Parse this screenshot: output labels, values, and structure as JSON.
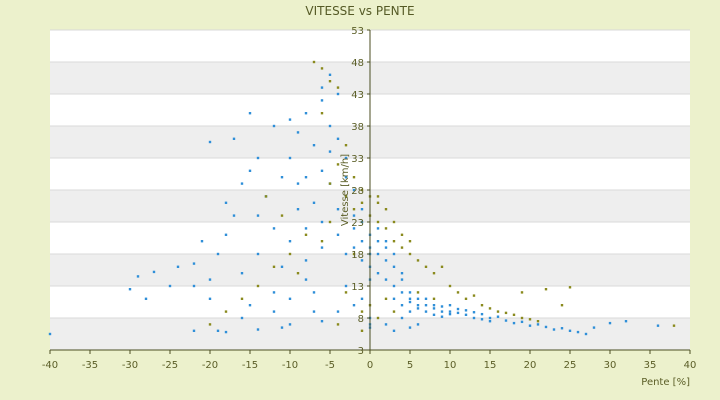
{
  "chart_data": {
    "type": "scatter",
    "title": "VITESSE vs PENTE",
    "xlabel": "Pente [%]",
    "ylabel": "Vitesse [km/h]",
    "xlim": [
      -40,
      40
    ],
    "ylim": [
      3,
      53
    ],
    "x_ticks": [
      "-40",
      "-35",
      "-30",
      "-25",
      "-20",
      "-15",
      "-10",
      "-5",
      "0",
      "5",
      "10",
      "15",
      "20",
      "25",
      "30",
      "35",
      "40"
    ],
    "y_ticks": [
      "3",
      "8",
      "13",
      "18",
      "23",
      "28",
      "33",
      "38",
      "43",
      "48",
      "53"
    ],
    "grid": true,
    "legend": "none",
    "colors": {
      "background": "#ECF1CC",
      "band_light": "#FFFFFF",
      "band_dark": "#EEEEEE",
      "series_blue": "#2F8FD8",
      "series_olive": "#8A8A1E",
      "axis": "#4B4E22",
      "text": "#5B5E27"
    },
    "series": [
      {
        "color_key": "series_blue",
        "points": [
          [
            -40,
            5.5
          ],
          [
            -30,
            12.5
          ],
          [
            -28,
            11
          ],
          [
            -29,
            14.5
          ],
          [
            -27,
            15.2
          ],
          [
            -25,
            13
          ],
          [
            -24,
            16
          ],
          [
            -22,
            13
          ],
          [
            -22,
            16.5
          ],
          [
            -21,
            20
          ],
          [
            -20,
            14
          ],
          [
            -20,
            35.5
          ],
          [
            -19,
            18
          ],
          [
            -18,
            21
          ],
          [
            -18,
            26
          ],
          [
            -17,
            36
          ],
          [
            -17,
            24
          ],
          [
            -16,
            15
          ],
          [
            -16,
            29
          ],
          [
            -15,
            31
          ],
          [
            -15,
            40
          ],
          [
            -14,
            24
          ],
          [
            -14,
            18
          ],
          [
            -14,
            33
          ],
          [
            -13,
            27
          ],
          [
            -12,
            12
          ],
          [
            -12,
            22
          ],
          [
            -12,
            38
          ],
          [
            -11,
            30
          ],
          [
            -11,
            16
          ],
          [
            -10,
            20
          ],
          [
            -10,
            39
          ],
          [
            -10,
            33
          ],
          [
            -10,
            11
          ],
          [
            -9,
            25
          ],
          [
            -9,
            29
          ],
          [
            -9,
            37
          ],
          [
            -8,
            22
          ],
          [
            -8,
            17
          ],
          [
            -8,
            30
          ],
          [
            -8,
            40
          ],
          [
            -7,
            35
          ],
          [
            -7,
            26
          ],
          [
            -7,
            12
          ],
          [
            -6,
            44
          ],
          [
            -6,
            42
          ],
          [
            -6,
            31
          ],
          [
            -6,
            23
          ],
          [
            -6,
            19
          ],
          [
            -5,
            38
          ],
          [
            -5,
            29
          ],
          [
            -5,
            34
          ],
          [
            -5,
            46
          ],
          [
            -4,
            25
          ],
          [
            -4,
            36
          ],
          [
            -4,
            21
          ],
          [
            -4,
            43
          ],
          [
            -3,
            30
          ],
          [
            -3,
            33
          ],
          [
            -3,
            27
          ],
          [
            -3,
            18
          ],
          [
            -2,
            24
          ],
          [
            -2,
            22
          ],
          [
            -2,
            28
          ],
          [
            -2,
            19
          ],
          [
            -1,
            20
          ],
          [
            -1,
            23
          ],
          [
            -1,
            25
          ],
          [
            -1,
            17
          ],
          [
            0,
            21
          ],
          [
            0,
            18
          ],
          [
            0,
            16
          ],
          [
            0,
            14
          ],
          [
            0,
            19
          ],
          [
            0,
            8
          ],
          [
            0,
            7
          ],
          [
            0,
            6.5
          ],
          [
            1,
            18
          ],
          [
            1,
            20
          ],
          [
            1,
            15
          ],
          [
            1,
            22
          ],
          [
            2,
            17
          ],
          [
            2,
            19
          ],
          [
            2,
            14
          ],
          [
            2,
            20
          ],
          [
            3,
            16
          ],
          [
            3,
            13
          ],
          [
            3,
            18
          ],
          [
            3,
            11
          ],
          [
            4,
            12
          ],
          [
            4,
            15
          ],
          [
            4,
            10
          ],
          [
            4,
            14
          ],
          [
            5,
            12
          ],
          [
            5,
            11
          ],
          [
            5,
            9
          ],
          [
            5,
            10.5
          ],
          [
            6,
            11
          ],
          [
            6,
            10
          ],
          [
            6,
            9.5
          ],
          [
            7,
            10
          ],
          [
            7,
            9
          ],
          [
            7,
            11
          ],
          [
            8,
            9.5
          ],
          [
            8,
            10
          ],
          [
            8,
            8.5
          ],
          [
            9,
            9
          ],
          [
            9,
            9.8
          ],
          [
            9,
            8.2
          ],
          [
            10,
            9
          ],
          [
            10,
            8.6
          ],
          [
            10,
            10
          ],
          [
            11,
            8.8
          ],
          [
            11,
            9.4
          ],
          [
            12,
            8.5
          ],
          [
            12,
            9.2
          ],
          [
            13,
            8
          ],
          [
            13,
            8.9
          ],
          [
            14,
            7.8
          ],
          [
            14,
            8.6
          ],
          [
            15,
            8
          ],
          [
            15,
            7.5
          ],
          [
            16,
            8.2
          ],
          [
            17,
            7.6
          ],
          [
            18,
            7.2
          ],
          [
            19,
            7.4
          ],
          [
            20,
            6.8
          ],
          [
            21,
            7
          ],
          [
            22,
            6.6
          ],
          [
            23,
            6.2
          ],
          [
            24,
            6.4
          ],
          [
            25,
            6
          ],
          [
            26,
            5.8
          ],
          [
            27,
            5.5
          ],
          [
            28,
            6.5
          ],
          [
            30,
            7.2
          ],
          [
            32,
            7.5
          ],
          [
            36,
            6.8
          ],
          [
            -22,
            6
          ],
          [
            -18,
            5.8
          ],
          [
            -14,
            6.2
          ],
          [
            -10,
            7
          ],
          [
            -6,
            7.5
          ],
          [
            -4,
            9
          ],
          [
            -2,
            10
          ],
          [
            -12,
            9
          ],
          [
            -16,
            8
          ],
          [
            -20,
            11
          ],
          [
            -8,
            14
          ],
          [
            -3,
            13
          ],
          [
            2,
            7
          ],
          [
            3,
            6
          ],
          [
            5,
            6.5
          ],
          [
            4,
            8
          ],
          [
            6,
            7
          ],
          [
            -1,
            11
          ],
          [
            -7,
            9
          ],
          [
            -11,
            6.5
          ],
          [
            -15,
            10
          ],
          [
            -19,
            6
          ]
        ]
      },
      {
        "color_key": "series_olive",
        "points": [
          [
            -7,
            48
          ],
          [
            -6,
            47
          ],
          [
            -5,
            45
          ],
          [
            -4,
            44
          ],
          [
            -6,
            40
          ],
          [
            -3,
            35
          ],
          [
            -4,
            32
          ],
          [
            -5,
            29
          ],
          [
            -3,
            27
          ],
          [
            -2,
            25
          ],
          [
            -2,
            30
          ],
          [
            -1,
            26
          ],
          [
            -1,
            28
          ],
          [
            0,
            27
          ],
          [
            0,
            24
          ],
          [
            1,
            26
          ],
          [
            1,
            23
          ],
          [
            1,
            27
          ],
          [
            2,
            25
          ],
          [
            2,
            22
          ],
          [
            3,
            20
          ],
          [
            3,
            23
          ],
          [
            4,
            21
          ],
          [
            4,
            19
          ],
          [
            5,
            18
          ],
          [
            5,
            20
          ],
          [
            6,
            17
          ],
          [
            7,
            16
          ],
          [
            8,
            15
          ],
          [
            9,
            16
          ],
          [
            10,
            13
          ],
          [
            11,
            12
          ],
          [
            12,
            11
          ],
          [
            13,
            11.5
          ],
          [
            14,
            10
          ],
          [
            15,
            9.5
          ],
          [
            16,
            9
          ],
          [
            17,
            8.8
          ],
          [
            18,
            8.5
          ],
          [
            19,
            8
          ],
          [
            20,
            7.8
          ],
          [
            21,
            7.5
          ],
          [
            22,
            12.5
          ],
          [
            25,
            12.8
          ],
          [
            19,
            12
          ],
          [
            24,
            10
          ],
          [
            -5,
            23
          ],
          [
            -8,
            21
          ],
          [
            -10,
            18
          ],
          [
            -12,
            16
          ],
          [
            -14,
            13
          ],
          [
            -16,
            11
          ],
          [
            -18,
            9
          ],
          [
            -20,
            7
          ],
          [
            -6,
            20
          ],
          [
            -9,
            15
          ],
          [
            -2,
            18
          ],
          [
            -3,
            12
          ],
          [
            -1,
            9
          ],
          [
            -4,
            7
          ],
          [
            0,
            10
          ],
          [
            1,
            8
          ],
          [
            2,
            11
          ],
          [
            3,
            9
          ],
          [
            6,
            12
          ],
          [
            8,
            11
          ],
          [
            -11,
            24
          ],
          [
            -13,
            27
          ],
          [
            38,
            6.8
          ],
          [
            -1,
            6
          ]
        ]
      }
    ]
  }
}
